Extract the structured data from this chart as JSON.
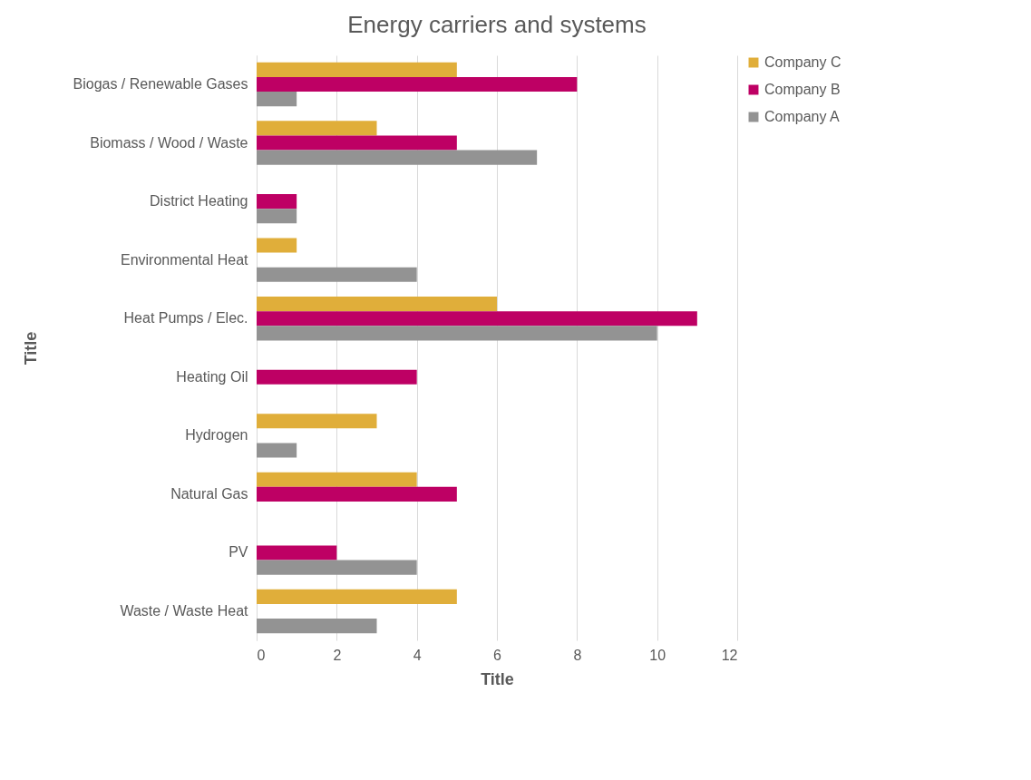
{
  "chart_data": {
    "type": "bar",
    "orientation": "horizontal",
    "title": "Energy carriers and systems",
    "xlabel": "Title",
    "ylabel": "Title",
    "categories": [
      "Biogas / Renewable Gases",
      "Biomass / Wood / Waste",
      "District Heating",
      "Environmental Heat",
      "Heat Pumps / Elec.",
      "Heating Oil",
      "Hydrogen",
      "Natural Gas",
      "PV",
      "Waste / Waste Heat"
    ],
    "series": [
      {
        "name": "Company C",
        "color": "#e0ae3a",
        "values": [
          5,
          3,
          null,
          1,
          6,
          null,
          3,
          4,
          null,
          5
        ]
      },
      {
        "name": "Company B",
        "color": "#be0064",
        "values": [
          8,
          5,
          1,
          null,
          11,
          4,
          null,
          5,
          2,
          null
        ]
      },
      {
        "name": "Company A",
        "color": "#939393",
        "values": [
          1,
          7,
          1,
          4,
          10,
          null,
          1,
          null,
          4,
          3
        ]
      }
    ],
    "xlim": [
      0,
      12
    ],
    "xticks": [
      0,
      2,
      4,
      6,
      8,
      10,
      12
    ],
    "grid": "x",
    "legend": "right"
  }
}
